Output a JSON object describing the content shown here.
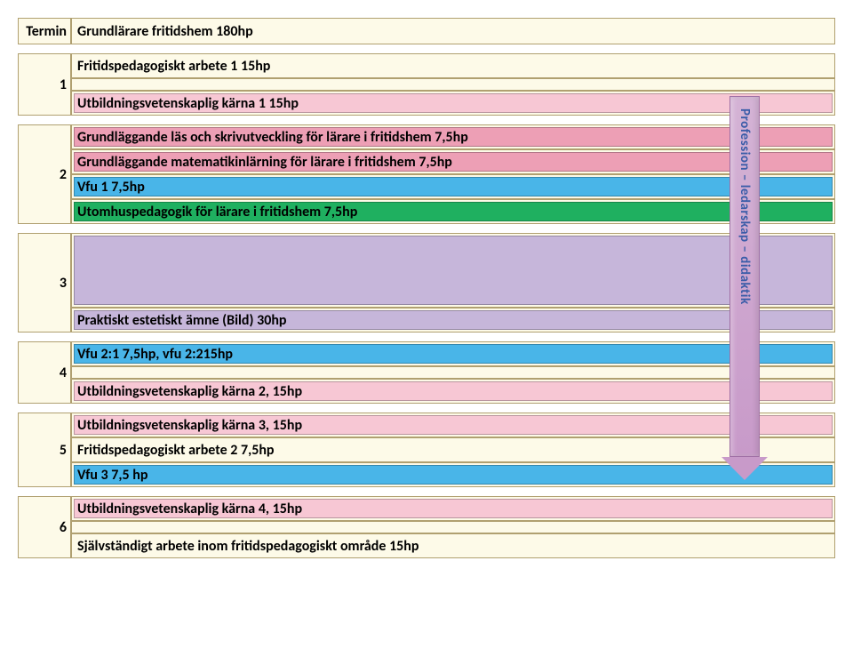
{
  "colors": {
    "base_bg": "#fdfae8",
    "border": "#b0a070",
    "pink": "#f7c7d4",
    "darkpink": "#ed9fb5",
    "blue": "#49b5e8",
    "green": "#1fb060",
    "purple": "#c6b6da",
    "text": "#000000",
    "arrow_text": "#3a5ca8"
  },
  "header": {
    "termin": "Termin",
    "title": "Grundlärare fritidshem 180hp"
  },
  "arrow_label": "Profession – ledarskap – didaktik",
  "terms": [
    {
      "num": "1",
      "rows": [
        {
          "text": "Fritidspedagogiskt arbete 1 15hp",
          "bg": "base",
          "inner": null,
          "height": "course"
        },
        {
          "text": "",
          "bg": "base",
          "inner": null,
          "height": "gap_small"
        },
        {
          "text": "Utbildningsvetenskaplig kärna 1 15hp",
          "bg": "base",
          "inner": "pink",
          "height": "course"
        }
      ]
    },
    {
      "num": "2",
      "rows": [
        {
          "text": "Grundläggande läs och skrivutveckling för lärare i fritidshem 7,5hp",
          "bg": "base",
          "inner": "darkpink",
          "height": "course"
        },
        {
          "text": "Grundläggande matematikinlärning för lärare i fritidshem 7,5hp",
          "bg": "base",
          "inner": "darkpink",
          "height": "course"
        },
        {
          "text": "Vfu 1 7,5hp",
          "bg": "base",
          "inner": "blue",
          "height": "course"
        },
        {
          "text": "Utomhuspedagogik för lärare i fritidshem 7,5hp",
          "bg": "base",
          "inner": "green",
          "height": "course"
        }
      ]
    },
    {
      "num": "3",
      "rows": [
        {
          "text": "",
          "bg": "base",
          "inner": "purple",
          "height": "tall_top"
        },
        {
          "text": "Praktiskt estetiskt ämne (Bild) 30hp",
          "bg": "base",
          "inner": "purple",
          "height": "course"
        }
      ]
    },
    {
      "num": "4",
      "rows": [
        {
          "text": "Vfu 2:1 7,5hp, vfu 2:215hp",
          "bg": "base",
          "inner": "blue",
          "height": "course"
        },
        {
          "text": "",
          "bg": "base",
          "inner": null,
          "height": "gap_small"
        },
        {
          "text": "Utbildningsvetenskaplig kärna 2, 15hp",
          "bg": "base",
          "inner": "pink",
          "height": "course"
        }
      ]
    },
    {
      "num": "5",
      "rows": [
        {
          "text": "Utbildningsvetenskaplig kärna 3, 15hp",
          "bg": "base",
          "inner": "pink",
          "height": "course"
        },
        {
          "text": "Fritidspedagogiskt arbete 2 7,5hp",
          "bg": "base",
          "inner": null,
          "height": "course"
        },
        {
          "text": "Vfu 3 7,5 hp",
          "bg": "base",
          "inner": "blue",
          "height": "course"
        }
      ]
    },
    {
      "num": "6",
      "rows": [
        {
          "text": "Utbildningsvetenskaplig kärna 4, 15hp",
          "bg": "base",
          "inner": "pink",
          "height": "course"
        },
        {
          "text": "",
          "bg": "base",
          "inner": null,
          "height": "gap_small"
        },
        {
          "text": "Självständigt arbete inom fritidspedagogiskt område 15hp",
          "bg": "base",
          "inner": null,
          "height": "course"
        }
      ]
    }
  ]
}
